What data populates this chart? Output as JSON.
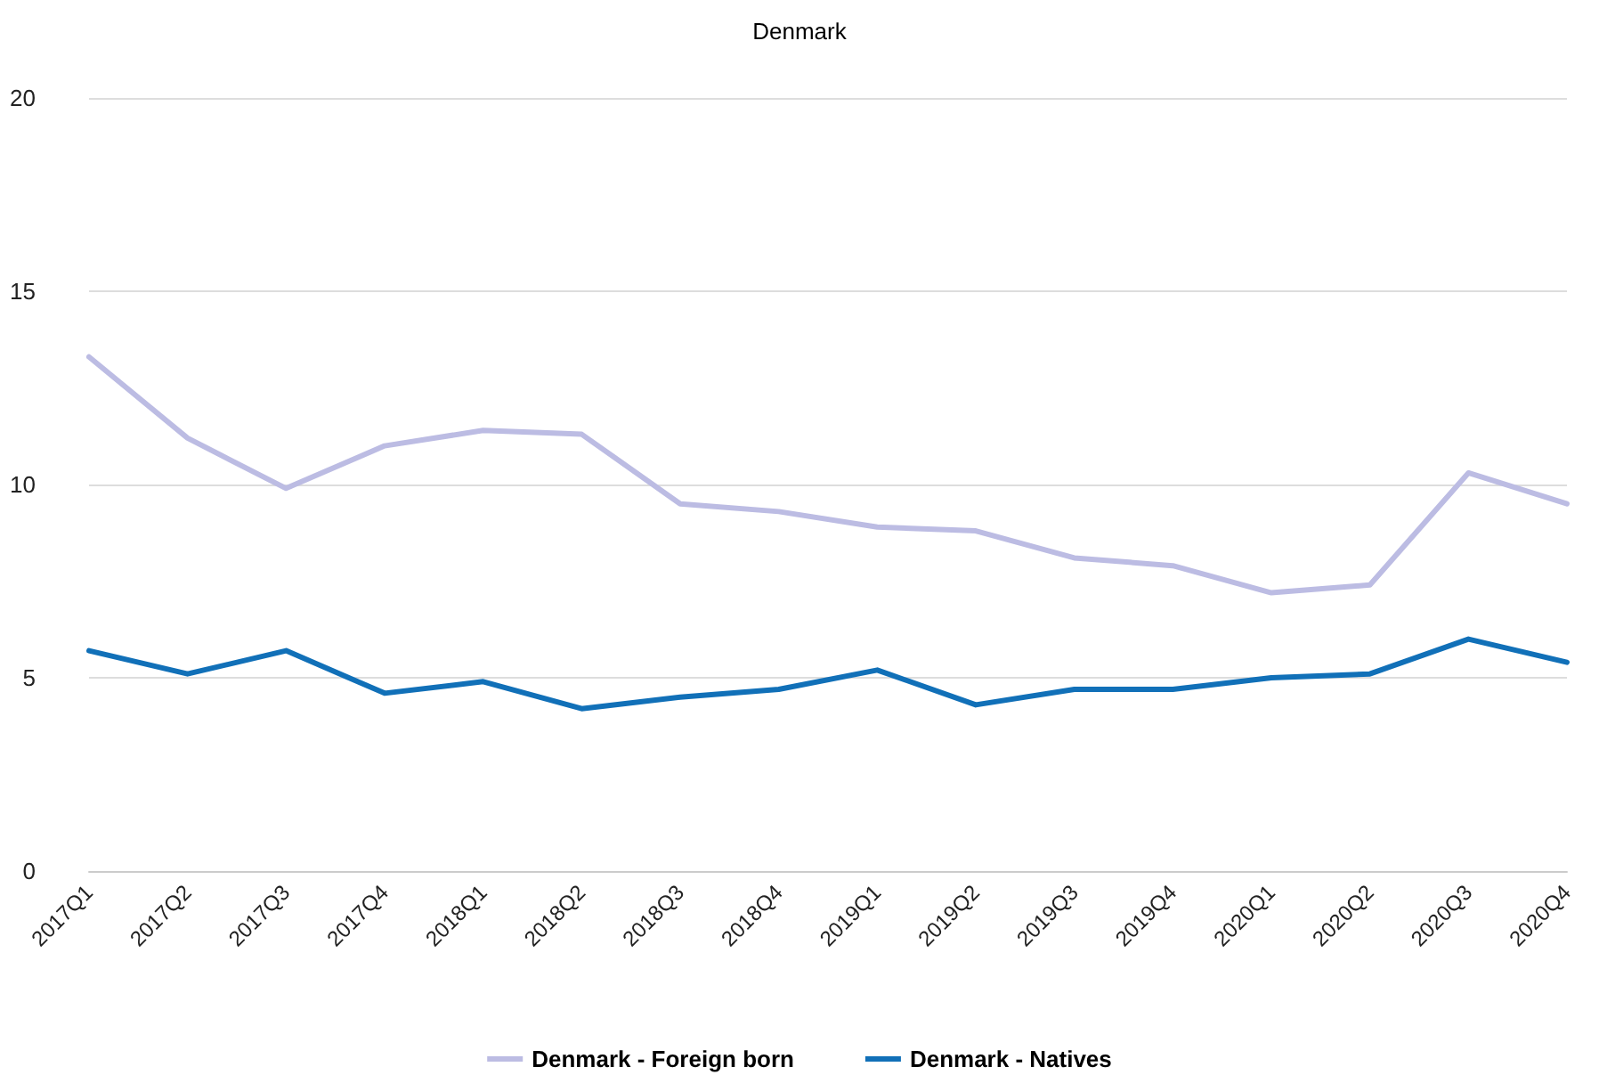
{
  "chart_data": {
    "type": "line",
    "title": "Denmark",
    "categories": [
      "2017Q1",
      "2017Q2",
      "2017Q3",
      "2017Q4",
      "2018Q1",
      "2018Q2",
      "2018Q3",
      "2018Q4",
      "2019Q1",
      "2019Q2",
      "2019Q3",
      "2019Q4",
      "2020Q1",
      "2020Q2",
      "2020Q3",
      "2020Q4"
    ],
    "series": [
      {
        "name": "Denmark - Foreign born",
        "color": "#bcbce3",
        "values": [
          13.3,
          11.2,
          9.9,
          11.0,
          11.4,
          11.3,
          9.5,
          9.3,
          8.9,
          8.8,
          8.1,
          7.9,
          7.2,
          7.4,
          10.3,
          9.5
        ]
      },
      {
        "name": "Denmark - Natives",
        "color": "#1170b8",
        "values": [
          5.7,
          5.1,
          5.7,
          4.6,
          4.9,
          4.2,
          4.5,
          4.7,
          5.2,
          4.3,
          4.7,
          4.7,
          5.0,
          5.1,
          6.0,
          5.4
        ]
      }
    ],
    "ylim": [
      0,
      20
    ],
    "yticks": [
      0,
      5,
      10,
      15,
      20
    ],
    "grid": "y",
    "legend": "bottom",
    "marker": "none",
    "line_style": "solid"
  }
}
